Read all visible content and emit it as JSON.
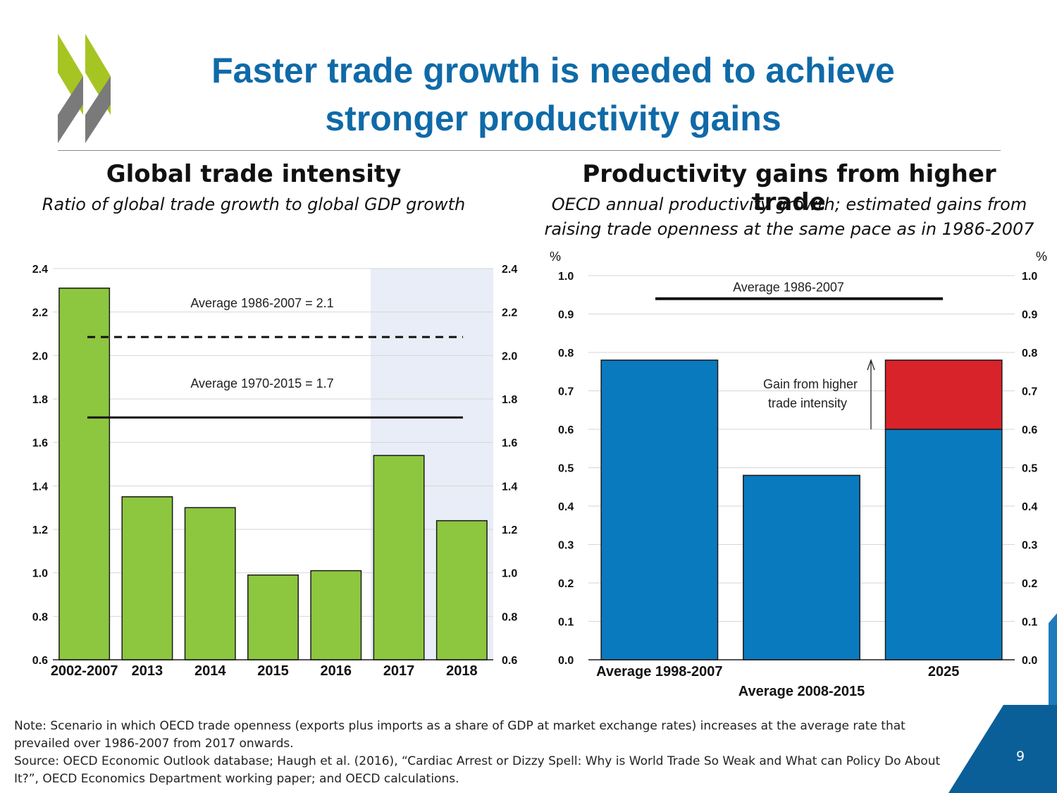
{
  "slide": {
    "title_line1": "Faster trade growth is needed to achieve",
    "title_line2": "stronger productivity gains",
    "page_number": "9",
    "colors": {
      "title": "#0f6aa8",
      "logo_green": "#a6c523",
      "logo_grey": "#7a7a7a",
      "corner_blue": "#0a5f98"
    }
  },
  "footer": {
    "note": "Note: Scenario in which OECD trade openness (exports plus imports as a share of GDP at market exchange rates) increases  at the average  rate that prevailed over 1986-2007 from 2017 onwards.",
    "source": "Source: OECD Economic Outlook database; Haugh et al. (2016), “Cardiac Arrest or Dizzy Spell: Why is World Trade So Weak and What can Policy Do About It?”, OECD Economics Department working paper; and OECD calculations."
  },
  "chart_data": [
    {
      "type": "bar",
      "title": "Global trade intensity",
      "subtitle": "Ratio of global trade growth to global GDP growth",
      "categories": [
        "2002-2007",
        "2013",
        "2014",
        "2015",
        "2016",
        "2017",
        "2018"
      ],
      "values": [
        2.31,
        1.35,
        1.3,
        0.99,
        1.01,
        1.54,
        1.24
      ],
      "ylim": [
        0.6,
        2.4
      ],
      "yticks": [
        "0.6",
        "0.8",
        "1.0",
        "1.2",
        "1.4",
        "1.6",
        "1.8",
        "2.0",
        "2.2",
        "2.4"
      ],
      "bar_color": "#8dc63f",
      "projection_shading_from": "2017",
      "projection_color": "#e9edf7",
      "reference_lines": [
        {
          "label": "Average 1986-2007 = 2.1",
          "value": 2.085,
          "style": "dashed"
        },
        {
          "label": "Average 1970-2015 = 1.7",
          "value": 1.715,
          "style": "solid"
        }
      ]
    },
    {
      "type": "bar",
      "title": "Productivity gains from higher trade",
      "subtitle_line1": "OECD annual productivity growth; estimated gains from",
      "subtitle_line2": "raising trade openness at the same pace as in 1986-2007",
      "ylabel": "%",
      "categories": [
        "Average 1998-2007",
        "Average 2008-2015",
        "2025"
      ],
      "series": [
        {
          "name": "Productivity growth",
          "values": [
            0.78,
            0.48,
            0.6
          ],
          "color": "#0a7abf"
        },
        {
          "name": "Gain from higher trade intensity",
          "values": [
            0,
            0,
            0.18
          ],
          "color": "#d9232a"
        }
      ],
      "ylim": [
        0.0,
        1.0
      ],
      "yticks": [
        "0.0",
        "0.1",
        "0.2",
        "0.3",
        "0.4",
        "0.5",
        "0.6",
        "0.7",
        "0.8",
        "0.9",
        "1.0"
      ],
      "reference_line": {
        "label": "Average 1986-2007",
        "value": 0.94
      },
      "annotation_line1": "Gain from higher",
      "annotation_line2": "trade intensity"
    }
  ]
}
